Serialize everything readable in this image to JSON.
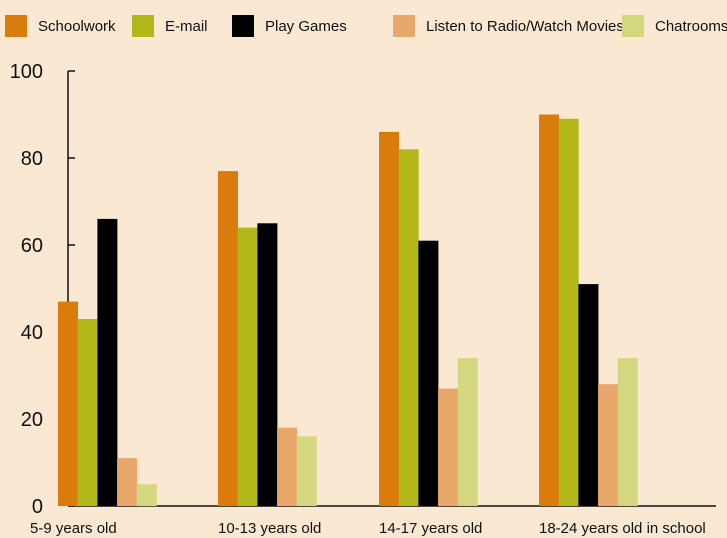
{
  "chart_data": {
    "type": "bar",
    "title": "",
    "xlabel": "",
    "ylabel": "",
    "ylim": [
      0,
      100
    ],
    "yticks": [
      0,
      20,
      40,
      60,
      80,
      100
    ],
    "grid": false,
    "legend_position": "top",
    "categories": [
      "5-9 years old",
      "10-13 years old",
      "14-17 years old",
      "18-24 years old in school"
    ],
    "series": [
      {
        "name": "Schoolwork",
        "color": "#d97b0d",
        "values": [
          47,
          77,
          86,
          90
        ]
      },
      {
        "name": "E-mail",
        "color": "#b3b81a",
        "values": [
          43,
          64,
          82,
          89
        ]
      },
      {
        "name": "Play Games",
        "color": "#000000",
        "values": [
          66,
          65,
          61,
          51
        ]
      },
      {
        "name": "Listen to Radio/Watch Movies",
        "color": "#e8a86c",
        "values": [
          11,
          18,
          27,
          28
        ]
      },
      {
        "name": "Chatrooms",
        "color": "#d3d77f",
        "values": [
          5,
          16,
          34,
          34
        ]
      }
    ]
  }
}
